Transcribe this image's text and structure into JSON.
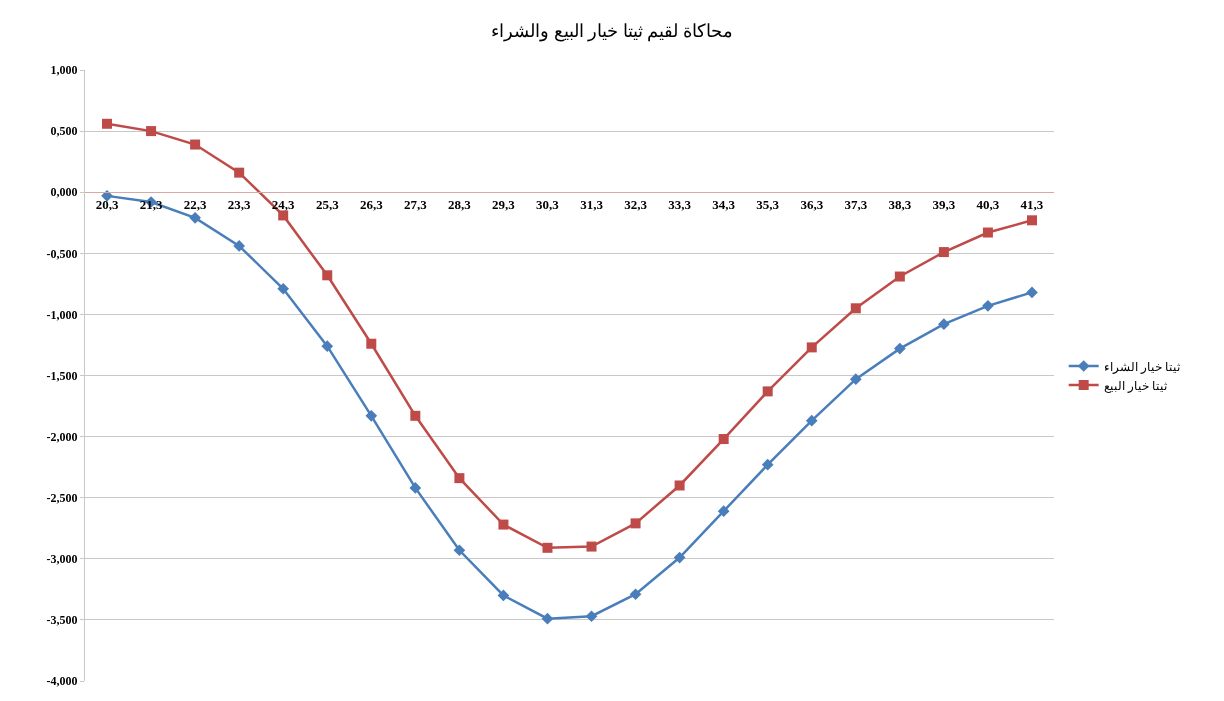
{
  "chart_data": {
    "type": "line",
    "title": "محاكاة لقيم ثيتا خيار البيع والشراء",
    "categories": [
      "20,3",
      "21,3",
      "22,3",
      "23,3",
      "24,3",
      "25,3",
      "26,3",
      "27,3",
      "28,3",
      "29,3",
      "30,3",
      "31,3",
      "32,3",
      "33,3",
      "34,3",
      "35,3",
      "36,3",
      "37,3",
      "38,3",
      "39,3",
      "40,3",
      "41,3"
    ],
    "series": [
      {
        "name": "ثيتا خيار الشراء",
        "color": "#4a7ebb",
        "marker": "diamond",
        "values": [
          -0.03,
          -0.08,
          -0.21,
          -0.44,
          -0.79,
          -1.26,
          -1.83,
          -2.42,
          -2.93,
          -3.3,
          -3.49,
          -3.47,
          -3.29,
          -2.99,
          -2.61,
          -2.23,
          -1.87,
          -1.53,
          -1.28,
          -1.08,
          -0.93,
          -0.82
        ]
      },
      {
        "name": "ثيتا خيار البيع",
        "color": "#be4b48",
        "marker": "square",
        "values": [
          0.56,
          0.5,
          0.39,
          0.16,
          -0.19,
          -0.68,
          -1.24,
          -1.83,
          -2.34,
          -2.72,
          -2.91,
          -2.9,
          -2.71,
          -2.4,
          -2.02,
          -1.63,
          -1.27,
          -0.95,
          -0.69,
          -0.49,
          -0.33,
          -0.23
        ]
      }
    ],
    "ylim": [
      -4,
      1
    ],
    "yticks": [
      {
        "value": -4,
        "label": "-4,000"
      },
      {
        "value": -3.5,
        "label": "-3,500"
      },
      {
        "value": -3,
        "label": "-3,000"
      },
      {
        "value": -2.5,
        "label": "-2,500"
      },
      {
        "value": -2,
        "label": "-2,000"
      },
      {
        "value": -1.5,
        "label": "-1,500"
      },
      {
        "value": -1,
        "label": "-1,000"
      },
      {
        "value": -0.5,
        "label": "-0,500"
      },
      {
        "value": 0,
        "label": "0,000"
      },
      {
        "value": 0.5,
        "label": "0,500"
      },
      {
        "value": 1,
        "label": "1,000"
      }
    ],
    "grid": "y",
    "legend": "right",
    "line_style": "solid"
  }
}
